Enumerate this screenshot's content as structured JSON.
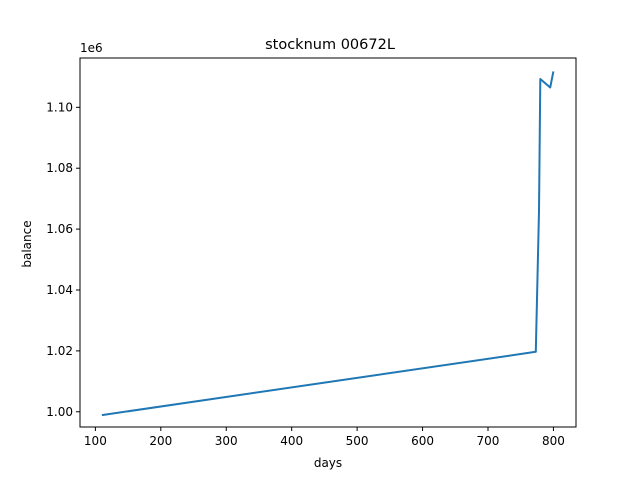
{
  "chart_data": {
    "type": "line",
    "title": "stocknum 00672L",
    "xlabel": "days",
    "ylabel": "balance",
    "y_offset_label": "1e6",
    "xlim": [
      76.5,
      834.5
    ],
    "ylim": [
      995000,
      1116200
    ],
    "x_ticks": [
      100,
      200,
      300,
      400,
      500,
      600,
      700,
      800
    ],
    "x_tick_labels": [
      "100",
      "200",
      "300",
      "400",
      "500",
      "600",
      "700",
      "800"
    ],
    "y_ticks": [
      1000000,
      1020000,
      1040000,
      1060000,
      1080000,
      1100000
    ],
    "y_tick_labels": [
      "1.00",
      "1.02",
      "1.04",
      "1.06",
      "1.08",
      "1.10"
    ],
    "grid": false,
    "colors": {
      "line": "#1f77b4",
      "axes": "#000000"
    },
    "series": [
      {
        "x": [
          110,
          773,
          778,
          780,
          795,
          800
        ],
        "y": [
          998900,
          1019700,
          1066000,
          1109300,
          1106500,
          1111800
        ]
      }
    ]
  }
}
